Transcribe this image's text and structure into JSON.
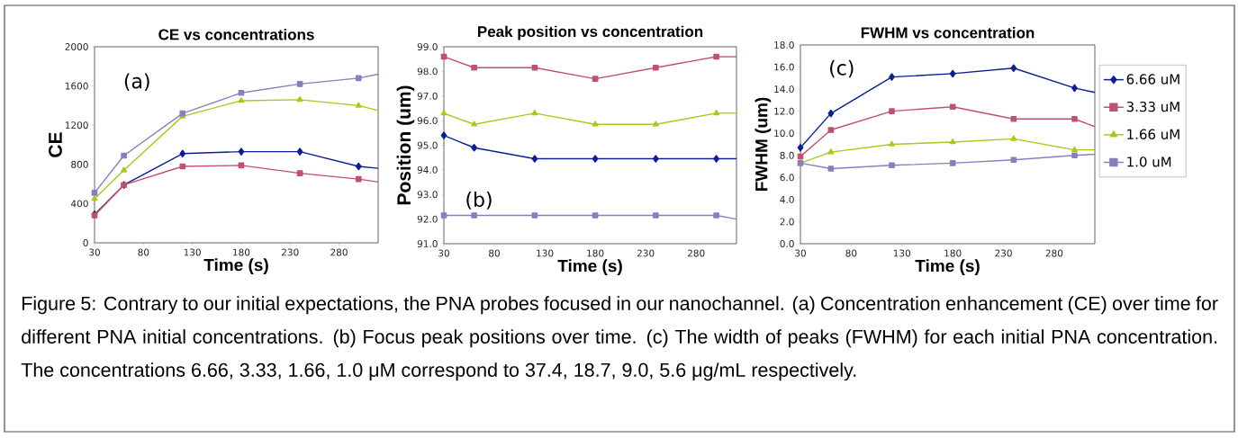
{
  "chart_data": [
    {
      "type": "line",
      "title": "CE vs concentrations",
      "xlabel": "Time (s)",
      "ylabel": "CE",
      "annotations": [
        "(a)"
      ],
      "x": [
        30,
        60,
        120,
        180,
        240,
        300,
        320
      ],
      "xlim": [
        30,
        320
      ],
      "xticks": [
        30,
        80,
        130,
        180,
        230,
        280
      ],
      "ylim": [
        0,
        2000
      ],
      "yticks": [
        0,
        400,
        800,
        1200,
        1600,
        2000
      ],
      "grid": false,
      "legend": false,
      "series": [
        {
          "color": "#0a1f96",
          "marker": "diamond",
          "values": [
            290,
            590,
            910,
            930,
            930,
            780,
            760
          ]
        },
        {
          "color": "#c0506e",
          "marker": "square",
          "values": [
            280,
            590,
            780,
            790,
            710,
            650,
            620
          ]
        },
        {
          "color": "#a2cc1c",
          "marker": "triangle",
          "values": [
            450,
            740,
            1290,
            1450,
            1460,
            1400,
            1350
          ]
        },
        {
          "color": "#8c7cc0",
          "marker": "square",
          "values": [
            510,
            890,
            1320,
            1530,
            1620,
            1680,
            1720
          ]
        }
      ]
    },
    {
      "type": "line",
      "title": "Peak position vs concentration",
      "xlabel": "Time (s)",
      "ylabel": "Position (um)",
      "annotations": [
        "(b)"
      ],
      "x": [
        30,
        60,
        120,
        180,
        240,
        300,
        320
      ],
      "xlim": [
        30,
        320
      ],
      "xticks": [
        30,
        80,
        130,
        180,
        230,
        280
      ],
      "ylim": [
        91,
        99
      ],
      "yticks": [
        {
          "value": 91,
          "label": "91.0"
        },
        {
          "value": 92,
          "label": "92.0"
        },
        {
          "value": 93,
          "label": "93.0"
        },
        {
          "value": 94,
          "label": "94.0"
        },
        {
          "value": 95,
          "label": "95.0"
        },
        {
          "value": 96,
          "label": "96.0"
        },
        {
          "value": 97,
          "label": "97.0"
        },
        {
          "value": 98,
          "label": "98.0"
        },
        {
          "value": 99,
          "label": "99.0"
        }
      ],
      "grid": false,
      "legend": false,
      "series": [
        {
          "color": "#0a1f96",
          "marker": "diamond",
          "values": [
            95.4,
            94.9,
            94.45,
            94.45,
            94.45,
            94.45,
            94.45
          ]
        },
        {
          "color": "#c0506e",
          "marker": "square",
          "values": [
            98.6,
            98.15,
            98.15,
            97.7,
            98.15,
            98.6,
            98.6
          ]
        },
        {
          "color": "#a2cc1c",
          "marker": "triangle",
          "values": [
            96.3,
            95.85,
            96.3,
            95.85,
            95.85,
            96.3,
            96.3
          ]
        },
        {
          "color": "#8c7cc0",
          "marker": "square",
          "values": [
            92.15,
            92.15,
            92.15,
            92.15,
            92.15,
            92.15,
            92.0
          ]
        }
      ]
    },
    {
      "type": "line",
      "title": "FWHM vs concentration",
      "xlabel": "Time (s)",
      "ylabel": "FWHM (um)",
      "annotations": [
        "(c)",
        "Figure 5: Contrary to our initial expectations, the PNA probes focused in our nanochannel. (a) Concentration enhancement (CE) over time for different PNA initial concentrations. (b) Focus peak positions over time. (c) The width of peaks (FWHM) for each initial PNA concentration. The concentrations 6.66, 3.33, 1.66, 1.0 μM correspond to 37.4, 18.7, 9.0, 5.6 μg/mL respectively."
      ],
      "x": [
        30,
        60,
        120,
        180,
        240,
        300,
        320
      ],
      "xlim": [
        30,
        320
      ],
      "xticks": [
        30,
        80,
        130,
        180,
        230,
        280
      ],
      "ylim": [
        0,
        18
      ],
      "yticks": [
        {
          "value": 0,
          "label": "0.0"
        },
        {
          "value": 2,
          "label": "2.0"
        },
        {
          "value": 4,
          "label": "4.0"
        },
        {
          "value": 6,
          "label": "6.0"
        },
        {
          "value": 8,
          "label": "8.0"
        },
        {
          "value": 10,
          "label": "10.0"
        },
        {
          "value": 12,
          "label": "12.0"
        },
        {
          "value": 14,
          "label": "14.0"
        },
        {
          "value": 16,
          "label": "16.0"
        },
        {
          "value": 18,
          "label": "18.0"
        }
      ],
      "grid": false,
      "legend": "right",
      "series": [
        {
          "name": "6.66 uM",
          "color": "#0a1f96",
          "marker": "diamond",
          "values": [
            8.7,
            11.8,
            15.1,
            15.4,
            15.9,
            14.1,
            13.7
          ]
        },
        {
          "name": "3.33 uM",
          "color": "#c0506e",
          "marker": "square",
          "values": [
            7.9,
            10.3,
            12.0,
            12.4,
            11.3,
            11.3,
            10.6
          ]
        },
        {
          "name": "1.66 uM",
          "color": "#a2cc1c",
          "marker": "triangle",
          "values": [
            7.3,
            8.3,
            9.0,
            9.2,
            9.5,
            8.5,
            8.5
          ]
        },
        {
          "name": "1.0 uM",
          "color": "#8c7cc0",
          "marker": "square",
          "values": [
            7.3,
            6.8,
            7.1,
            7.3,
            7.6,
            8.0,
            8.1
          ]
        }
      ]
    }
  ]
}
